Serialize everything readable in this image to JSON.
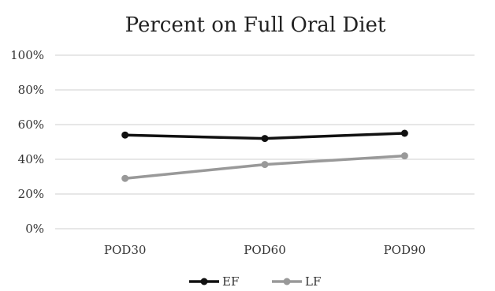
{
  "chart_data": {
    "type": "line",
    "title": "Percent on Full Oral Diet",
    "categories": [
      "POD30",
      "POD60",
      "POD90"
    ],
    "ylim": [
      0,
      100
    ],
    "yticks": [
      "0%",
      "20%",
      "40%",
      "60%",
      "80%",
      "100%"
    ],
    "grid": true,
    "legend_position": "bottom",
    "series": [
      {
        "name": "EF",
        "values": [
          54,
          52,
          55
        ],
        "color": "#111111"
      },
      {
        "name": "LF",
        "values": [
          29,
          37,
          42
        ],
        "color": "#999999"
      }
    ]
  }
}
